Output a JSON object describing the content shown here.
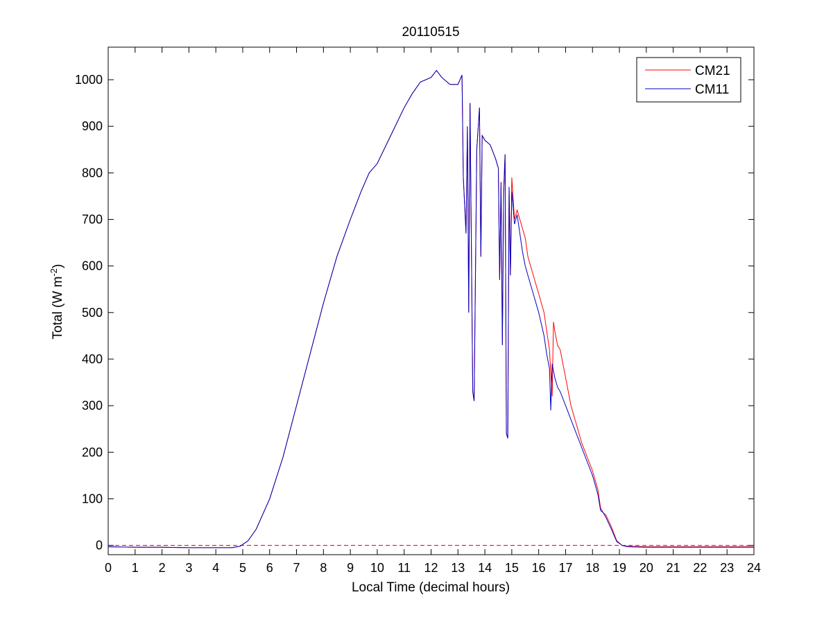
{
  "chart_data": {
    "type": "line",
    "title": "20110515",
    "xlabel": "Local Time (decimal hours)",
    "ylabel": {
      "base": "Total (W m",
      "sup": "-2",
      "close": ")"
    },
    "xlim": [
      0,
      24
    ],
    "ylim": [
      -20,
      1070
    ],
    "xticks": [
      0,
      1,
      2,
      3,
      4,
      5,
      6,
      7,
      8,
      9,
      10,
      11,
      12,
      13,
      14,
      15,
      16,
      17,
      18,
      19,
      20,
      21,
      22,
      23,
      24
    ],
    "yticks": [
      0,
      100,
      200,
      300,
      400,
      500,
      600,
      700,
      800,
      900,
      1000
    ],
    "grid": false,
    "legend_position": "top-right",
    "zero_line": {
      "y": 0,
      "color": "#cc0000",
      "style": "dashed"
    },
    "series": [
      {
        "name": "CM21",
        "color": "#ff0000",
        "points": [
          [
            0,
            -3
          ],
          [
            1,
            -4
          ],
          [
            2,
            -4
          ],
          [
            3,
            -5
          ],
          [
            4,
            -5
          ],
          [
            4.6,
            -5
          ],
          [
            4.9,
            -2
          ],
          [
            5,
            2
          ],
          [
            5.2,
            10
          ],
          [
            5.5,
            35
          ],
          [
            6,
            100
          ],
          [
            6.5,
            190
          ],
          [
            7,
            300
          ],
          [
            7.5,
            410
          ],
          [
            8,
            520
          ],
          [
            8.5,
            620
          ],
          [
            9,
            700
          ],
          [
            9.4,
            760
          ],
          [
            9.7,
            800
          ],
          [
            10,
            820
          ],
          [
            10.5,
            880
          ],
          [
            11,
            940
          ],
          [
            11.3,
            970
          ],
          [
            11.6,
            995
          ],
          [
            12,
            1005
          ],
          [
            12.2,
            1020
          ],
          [
            12.4,
            1005
          ],
          [
            12.7,
            990
          ],
          [
            13,
            990
          ],
          [
            13.15,
            1010
          ],
          [
            13.2,
            790
          ],
          [
            13.3,
            670
          ],
          [
            13.35,
            900
          ],
          [
            13.4,
            500
          ],
          [
            13.45,
            950
          ],
          [
            13.55,
            330
          ],
          [
            13.6,
            310
          ],
          [
            13.7,
            850
          ],
          [
            13.8,
            940
          ],
          [
            13.85,
            620
          ],
          [
            13.9,
            880
          ],
          [
            14,
            870
          ],
          [
            14.2,
            860
          ],
          [
            14.4,
            830
          ],
          [
            14.5,
            810
          ],
          [
            14.55,
            570
          ],
          [
            14.6,
            780
          ],
          [
            14.65,
            430
          ],
          [
            14.7,
            760
          ],
          [
            14.75,
            840
          ],
          [
            14.8,
            240
          ],
          [
            14.85,
            230
          ],
          [
            14.9,
            770
          ],
          [
            14.95,
            580
          ],
          [
            15,
            790
          ],
          [
            15.1,
            700
          ],
          [
            15.2,
            720
          ],
          [
            15.4,
            680
          ],
          [
            15.5,
            660
          ],
          [
            15.6,
            620
          ],
          [
            15.8,
            580
          ],
          [
            16,
            540
          ],
          [
            16.2,
            500
          ],
          [
            16.3,
            460
          ],
          [
            16.4,
            420
          ],
          [
            16.5,
            320
          ],
          [
            16.55,
            480
          ],
          [
            16.6,
            460
          ],
          [
            16.7,
            430
          ],
          [
            16.8,
            420
          ],
          [
            17,
            360
          ],
          [
            17.2,
            300
          ],
          [
            17.4,
            260
          ],
          [
            17.6,
            220
          ],
          [
            17.8,
            190
          ],
          [
            18,
            160
          ],
          [
            18.2,
            120
          ],
          [
            18.3,
            80
          ],
          [
            18.4,
            70
          ],
          [
            18.5,
            65
          ],
          [
            18.7,
            40
          ],
          [
            18.9,
            10
          ],
          [
            19.1,
            0
          ],
          [
            19.3,
            -2
          ],
          [
            20,
            -3
          ],
          [
            21,
            -3
          ],
          [
            22,
            -3
          ],
          [
            23,
            -3
          ],
          [
            24,
            -3
          ]
        ]
      },
      {
        "name": "CM11",
        "color": "#0000c0",
        "points": [
          [
            0,
            -3
          ],
          [
            1,
            -4
          ],
          [
            2,
            -4
          ],
          [
            3,
            -5
          ],
          [
            4,
            -5
          ],
          [
            4.6,
            -5
          ],
          [
            4.9,
            -2
          ],
          [
            5,
            2
          ],
          [
            5.2,
            10
          ],
          [
            5.5,
            35
          ],
          [
            6,
            100
          ],
          [
            6.5,
            190
          ],
          [
            7,
            300
          ],
          [
            7.5,
            410
          ],
          [
            8,
            520
          ],
          [
            8.5,
            620
          ],
          [
            9,
            700
          ],
          [
            9.4,
            760
          ],
          [
            9.7,
            800
          ],
          [
            10,
            820
          ],
          [
            10.5,
            880
          ],
          [
            11,
            940
          ],
          [
            11.3,
            970
          ],
          [
            11.6,
            995
          ],
          [
            12,
            1005
          ],
          [
            12.2,
            1020
          ],
          [
            12.4,
            1005
          ],
          [
            12.7,
            990
          ],
          [
            13,
            990
          ],
          [
            13.15,
            1010
          ],
          [
            13.2,
            790
          ],
          [
            13.3,
            670
          ],
          [
            13.35,
            900
          ],
          [
            13.4,
            500
          ],
          [
            13.45,
            950
          ],
          [
            13.55,
            330
          ],
          [
            13.6,
            310
          ],
          [
            13.7,
            850
          ],
          [
            13.8,
            940
          ],
          [
            13.85,
            620
          ],
          [
            13.9,
            880
          ],
          [
            14,
            870
          ],
          [
            14.2,
            860
          ],
          [
            14.4,
            830
          ],
          [
            14.5,
            810
          ],
          [
            14.55,
            570
          ],
          [
            14.6,
            780
          ],
          [
            14.65,
            430
          ],
          [
            14.7,
            760
          ],
          [
            14.75,
            840
          ],
          [
            14.8,
            240
          ],
          [
            14.85,
            230
          ],
          [
            14.9,
            770
          ],
          [
            14.95,
            580
          ],
          [
            15,
            760
          ],
          [
            15.1,
            690
          ],
          [
            15.2,
            710
          ],
          [
            15.4,
            630
          ],
          [
            15.5,
            600
          ],
          [
            15.6,
            580
          ],
          [
            15.8,
            540
          ],
          [
            16,
            500
          ],
          [
            16.2,
            450
          ],
          [
            16.3,
            410
          ],
          [
            16.4,
            380
          ],
          [
            16.45,
            290
          ],
          [
            16.5,
            390
          ],
          [
            16.6,
            360
          ],
          [
            16.7,
            340
          ],
          [
            16.8,
            330
          ],
          [
            17,
            300
          ],
          [
            17.2,
            270
          ],
          [
            17.4,
            240
          ],
          [
            17.6,
            210
          ],
          [
            17.8,
            180
          ],
          [
            18,
            150
          ],
          [
            18.2,
            110
          ],
          [
            18.3,
            75
          ],
          [
            18.4,
            70
          ],
          [
            18.5,
            60
          ],
          [
            18.7,
            35
          ],
          [
            18.9,
            8
          ],
          [
            19.1,
            0
          ],
          [
            19.3,
            -3
          ],
          [
            20,
            -4
          ],
          [
            21,
            -4
          ],
          [
            22,
            -4
          ],
          [
            23,
            -4
          ],
          [
            24,
            -4
          ]
        ]
      }
    ]
  }
}
